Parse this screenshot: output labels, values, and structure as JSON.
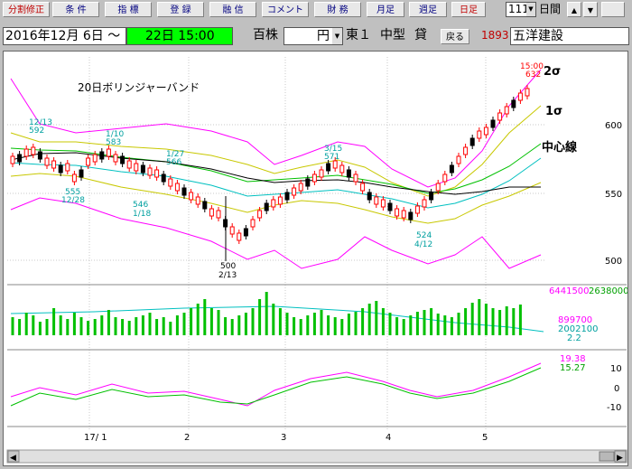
{
  "toolbar": {
    "btn_split": "分割修正",
    "btn_cond": "条 件",
    "btn_indicator": "指 標",
    "btn_register": "登 録",
    "btn_margin": "融 信",
    "btn_comment": "コメント",
    "btn_finance": "財 務",
    "btn_monthly": "月足",
    "btn_weekly": "週足",
    "btn_daily": "日足",
    "count": "111",
    "period_label": "日間"
  },
  "header": {
    "date_range": "2016年12月 6日 ～",
    "end_date": "22日 15:00",
    "unit": "百株",
    "currency": "円",
    "market": "東１",
    "size": "中型",
    "lending": "貸",
    "back": "戻る",
    "code": "1893",
    "name": "五洋建設"
  },
  "chart_data": {
    "type": "candlestick",
    "title": "20日ボリンジャーバンド",
    "band_labels": {
      "sigma2": "2σ",
      "sigma1": "1σ",
      "center": "中心線"
    },
    "price_ticks": [
      "600",
      "550",
      "500"
    ],
    "price_range": [
      480,
      640
    ],
    "annotations": [
      {
        "date": "12/13",
        "value": "592"
      },
      {
        "date": "1/10",
        "value": "583"
      },
      {
        "date": "1/27",
        "value": "566"
      },
      {
        "date": "3/15",
        "value": "571"
      },
      {
        "date": "15:00",
        "value": "632"
      },
      {
        "date": "12/28",
        "value": "555"
      },
      {
        "date": "1/18",
        "value": "546"
      },
      {
        "date": "2/13",
        "value": "500"
      },
      {
        "date": "4/12",
        "value": "524"
      }
    ],
    "volume": {
      "max": "6441500",
      "right_val": "2638000",
      "mid1": "899700",
      "mid2": "2002100",
      "ratio": "2.2"
    },
    "oscillator": {
      "v1": "19.38",
      "v2": "15.27",
      "ticks": [
        "10",
        "0",
        "-10"
      ]
    },
    "x_ticks": [
      "17/ 1",
      "2",
      "3",
      "4",
      "5"
    ],
    "colors": {
      "up": "#ff0000",
      "down": "#000000",
      "sigma2": "#ff00ff",
      "sigma1": "#c8c800",
      "center": "#000000",
      "band_a": "#00c000",
      "band_b": "#00c0c0",
      "volume": "#00c000"
    }
  }
}
